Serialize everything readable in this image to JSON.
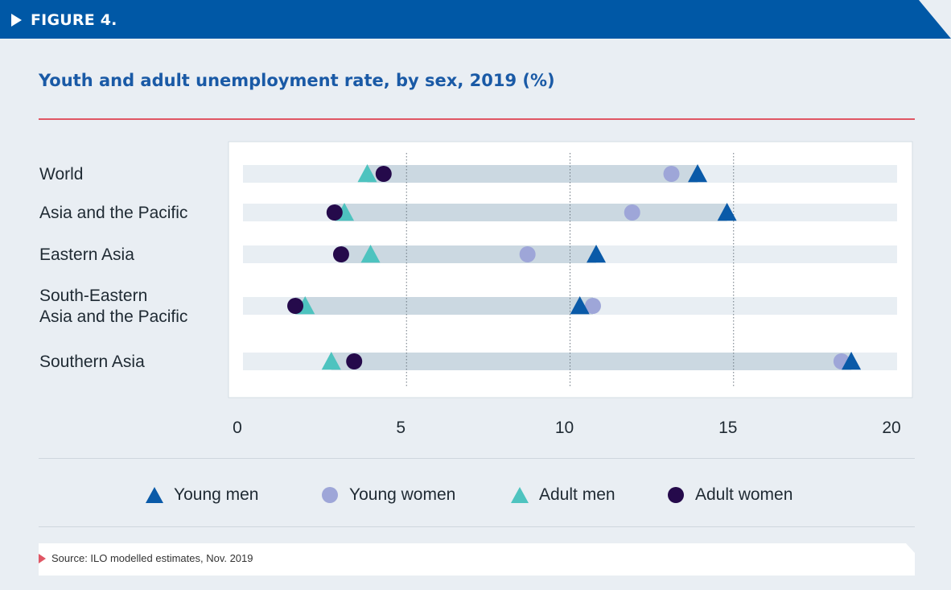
{
  "figure_label": "FIGURE 4.",
  "colors": {
    "header": "#0058a6",
    "accent_red": "#e05664",
    "young_men": "#0a5aa8",
    "young_women": "#9ea6d8",
    "adult_men": "#4ec3bf",
    "adult_women": "#250a4b",
    "range_bar": "#cbd8e1",
    "track": "#e8eef3"
  },
  "chart_data": {
    "type": "dot-range",
    "title": "Youth and adult unemployment rate, by sex, 2019 (%)",
    "xlabel": "",
    "ylabel": "",
    "xlim": [
      0,
      20
    ],
    "xticks": [
      "0",
      "5",
      "10",
      "15",
      "20"
    ],
    "gridlines": [
      5,
      10,
      15
    ],
    "categories": [
      "World",
      "Asia and the Pacific",
      "Eastern Asia",
      "South-Eastern Asia and the Pacific",
      "Southern Asia"
    ],
    "category_lines": [
      [
        "World"
      ],
      [
        "Asia and the Pacific"
      ],
      [
        "Eastern Asia"
      ],
      [
        "South-Eastern",
        "Asia and the Pacific"
      ],
      [
        "Southern Asia"
      ]
    ],
    "series": [
      {
        "name": "Young men",
        "marker": "triangle",
        "values": [
          13.9,
          14.8,
          10.8,
          10.3,
          18.6
        ]
      },
      {
        "name": "Young women",
        "marker": "circle",
        "values": [
          13.1,
          11.9,
          8.7,
          10.7,
          18.3
        ]
      },
      {
        "name": "Adult men",
        "marker": "triangle",
        "values": [
          3.8,
          3.1,
          3.9,
          1.9,
          2.7
        ]
      },
      {
        "name": "Adult women",
        "marker": "circle",
        "values": [
          4.3,
          2.8,
          3.0,
          1.6,
          3.4
        ]
      }
    ],
    "legend_position": "bottom"
  },
  "source": "Source: ILO modelled estimates, Nov. 2019"
}
